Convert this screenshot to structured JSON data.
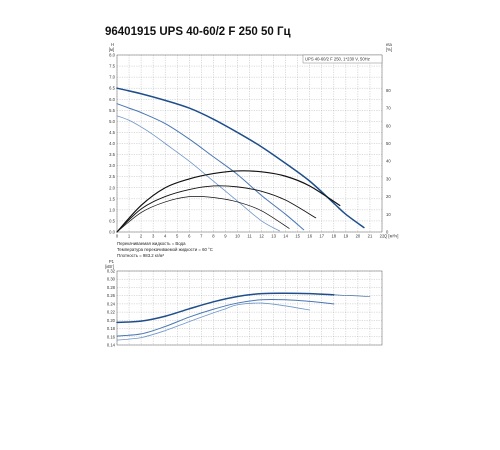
{
  "title": "96401915 UPS 40-60/2 F 250 50 Гц",
  "chart_data": [
    {
      "type": "line",
      "legend_text": "UPS 40-60/2 F 250, 1*230 V, 50Hz",
      "xlabel": "Q [м³/ч]",
      "ylabel_left": [
        "H",
        "[м]"
      ],
      "ylabel_right": [
        "eta",
        "[%]"
      ],
      "xlim": [
        0,
        22
      ],
      "ylim": [
        0,
        8
      ],
      "y2lim": [
        0,
        100
      ],
      "x_ticks": [
        "0",
        "1",
        "2",
        "3",
        "4",
        "5",
        "6",
        "7",
        "8",
        "9",
        "10",
        "11",
        "12",
        "13",
        "14",
        "15",
        "16",
        "17",
        "18",
        "19",
        "20",
        "21",
        "22"
      ],
      "y_ticks": [
        "0.0",
        "0.5",
        "1.0",
        "1.5",
        "2.0",
        "2.5",
        "3.0",
        "3.5",
        "4.0",
        "4.5",
        "5.0",
        "5.5",
        "6.0",
        "6.5",
        "7.0",
        "7.5",
        "8.0"
      ],
      "y2_ticks": [
        "0",
        "10",
        "20",
        "30",
        "40",
        "50",
        "60",
        "70",
        "80"
      ],
      "grid": true,
      "series": [
        {
          "name": "",
          "axis": "left",
          "color": "#1f4e8c",
          "width": 1.5,
          "x": [
            0,
            2,
            4,
            6,
            8,
            10,
            12,
            14,
            16,
            18,
            19,
            20.5
          ],
          "y": [
            6.5,
            6.25,
            5.95,
            5.6,
            5.1,
            4.5,
            3.85,
            3.1,
            2.3,
            1.3,
            0.8,
            0.2
          ]
        },
        {
          "name": "",
          "axis": "left",
          "color": "#4a78b5",
          "width": 1.0,
          "x": [
            0,
            1,
            2,
            4,
            6,
            8,
            10,
            12,
            14,
            15.5
          ],
          "y": [
            5.8,
            5.6,
            5.4,
            4.9,
            4.2,
            3.4,
            2.6,
            1.65,
            0.8,
            0.1
          ]
        },
        {
          "name": "",
          "axis": "left",
          "color": "#6f97c9",
          "width": 0.8,
          "x": [
            0,
            1,
            2,
            3,
            4,
            6,
            8,
            10,
            12,
            13.5
          ],
          "y": [
            5.25,
            5.05,
            4.75,
            4.4,
            4.0,
            3.2,
            2.3,
            1.4,
            0.5,
            0.05
          ]
        },
        {
          "name": "",
          "axis": "right",
          "color": "#111111",
          "width": 1.2,
          "x": [
            0,
            2,
            4,
            6,
            8,
            10,
            12,
            14,
            16,
            18.5
          ],
          "y": [
            0,
            15,
            25,
            30,
            33,
            34.5,
            34,
            31.5,
            26,
            15
          ]
        },
        {
          "name": "",
          "axis": "right",
          "color": "#111111",
          "width": 0.9,
          "x": [
            0,
            2,
            4,
            6,
            8,
            10,
            12,
            14,
            16.5
          ],
          "y": [
            0,
            13,
            20,
            24,
            26,
            25.5,
            23,
            18,
            8
          ]
        },
        {
          "name": "",
          "axis": "right",
          "color": "#111111",
          "width": 0.7,
          "x": [
            0,
            2,
            4,
            6,
            8,
            10,
            12,
            14.3
          ],
          "y": [
            0,
            11,
            17,
            20,
            19.5,
            17,
            12,
            2
          ]
        }
      ],
      "notes": [
        "Перекачиваемая жидкость = Вода",
        "Температура перекачиваемой жидкости = 60 °C",
        "Плотность = 983.2 кг/м³"
      ]
    },
    {
      "type": "line",
      "ylabel_left": [
        "P1",
        "[кВт]"
      ],
      "xlim": [
        0,
        22
      ],
      "ylim": [
        0.14,
        0.32
      ],
      "y_ticks": [
        "0.14",
        "0.16",
        "0.18",
        "0.20",
        "0.22",
        "0.24",
        "0.26",
        "0.28",
        "0.30",
        "0.32"
      ],
      "grid": true,
      "series": [
        {
          "name": "",
          "color": "#1f4e8c",
          "width": 1.5,
          "x": [
            0,
            2,
            4,
            6,
            8,
            10,
            12,
            14,
            16,
            18
          ],
          "y": [
            0.195,
            0.198,
            0.21,
            0.228,
            0.245,
            0.258,
            0.265,
            0.266,
            0.265,
            0.262
          ]
        },
        {
          "name": "",
          "color": "#1f4e8c",
          "width": 0.6,
          "x": [
            18,
            19.5,
            21
          ],
          "y": [
            0.262,
            0.26,
            0.258
          ]
        },
        {
          "name": "",
          "color": "#4a78b5",
          "width": 1.0,
          "x": [
            0,
            2,
            4,
            6,
            8,
            10,
            12,
            14,
            16,
            18
          ],
          "y": [
            0.162,
            0.167,
            0.185,
            0.208,
            0.227,
            0.242,
            0.25,
            0.25,
            0.246,
            0.24
          ]
        },
        {
          "name": "",
          "color": "#6f97c9",
          "width": 0.8,
          "x": [
            0,
            2,
            4,
            6,
            8,
            9,
            10,
            12,
            14,
            16
          ],
          "y": [
            0.152,
            0.158,
            0.175,
            0.197,
            0.218,
            0.228,
            0.238,
            0.242,
            0.235,
            0.225
          ]
        }
      ]
    }
  ]
}
